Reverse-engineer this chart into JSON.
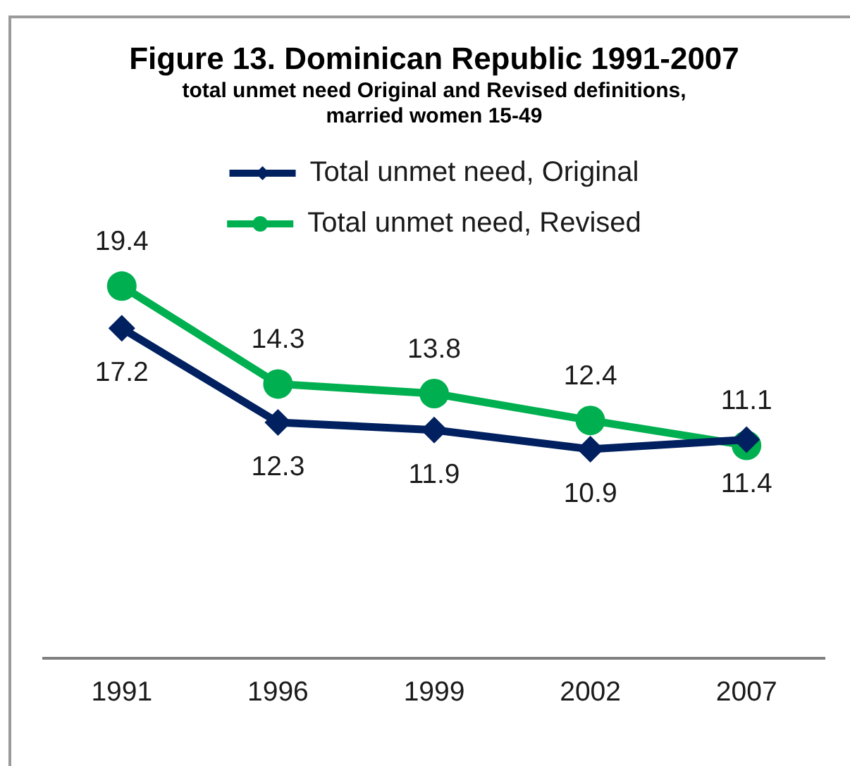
{
  "chart_data": {
    "type": "line",
    "title": "Figure 13. Dominican Republic 1991-2007",
    "subtitle": "total unmet need Original and Revised definitions, married women 15-49",
    "categories": [
      "1991",
      "1996",
      "1999",
      "2002",
      "2007"
    ],
    "series": [
      {
        "name": "Total unmet need, Original",
        "color": "#002060",
        "marker": "diamond",
        "values": [
          17.2,
          12.3,
          11.9,
          10.9,
          11.4
        ]
      },
      {
        "name": "Total unmet need, Revised",
        "color": "#00b050",
        "marker": "circle",
        "values": [
          19.4,
          14.3,
          13.8,
          12.4,
          11.1
        ]
      }
    ],
    "tick_labels": "x",
    "legend": "top",
    "data_labels": true
  }
}
